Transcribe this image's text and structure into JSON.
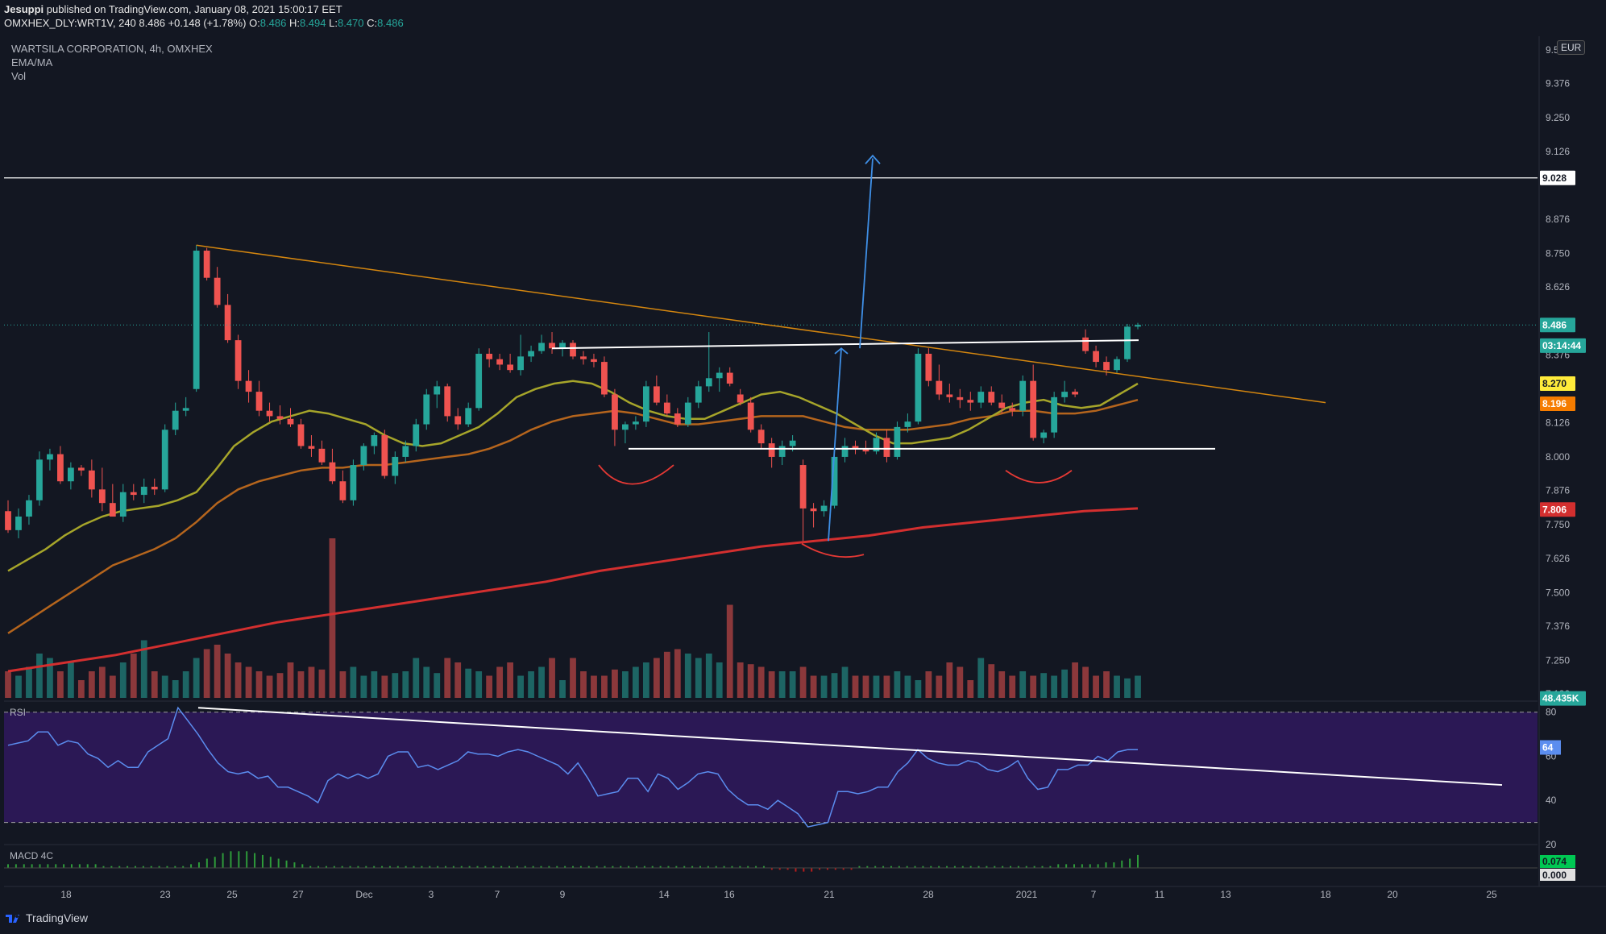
{
  "header": {
    "publisher": "Jesuppi",
    "published_text": "published on TradingView.com, January 08, 2021 15:00:17 EET",
    "symbol_line": "OMXHEX_DLY:WRT1V, 240",
    "last": "8.486",
    "change": "+0.148 (+1.78%)",
    "o_label": "O:",
    "o": "8.486",
    "h_label": "H:",
    "h": "8.494",
    "l_label": "L:",
    "l": "8.470",
    "c_label": "C:",
    "c": "8.486"
  },
  "legend": {
    "title": "WARTSILA CORPORATION, 4h, OMXHEX",
    "ind1": "EMA/MA",
    "ind2": "Vol",
    "rsi": "RSI",
    "macd": "MACD 4C"
  },
  "currency": "EUR",
  "footer": {
    "brand": "TradingView",
    "logo": "tradingview-logo-icon"
  },
  "colors": {
    "background": "#131722",
    "up": "#26a69a",
    "down": "#ef5350",
    "ema_short": "#a6a52a",
    "ema_long": "#b5651d",
    "ma_200": "#d32f2f",
    "trendline": "#d4860f",
    "rsi_line": "#5b8def",
    "rsi_band": "#2b1855",
    "arrow": "#3f8fe6",
    "cup": "#e53935"
  },
  "chart_data": {
    "type": "candlestick",
    "title": "WARTSILA CORPORATION, 4h, OMXHEX",
    "price_ticks": [
      "9.500",
      "9.376",
      "9.250",
      "9.126",
      "8.876",
      "8.750",
      "8.626",
      "8.376",
      "8.126",
      "8.000",
      "7.876",
      "7.750",
      "7.626",
      "7.500",
      "7.376",
      "7.250",
      "7.126"
    ],
    "price_labels": [
      {
        "text": "9.028",
        "kind": "hline"
      },
      {
        "text": "8.486",
        "kind": "last"
      },
      {
        "text": "03:14:44",
        "kind": "countdown"
      },
      {
        "text": "8.270",
        "kind": "ema_short"
      },
      {
        "text": "8.196",
        "kind": "ema_long"
      },
      {
        "text": "7.806",
        "kind": "ma_200"
      },
      {
        "text": "48.435K",
        "kind": "volume"
      }
    ],
    "ylim": [
      7.1,
      9.55
    ],
    "x_ticks": [
      "18",
      "23",
      "25",
      "27",
      "Dec",
      "3",
      "7",
      "9",
      "14",
      "16",
      "21",
      "28",
      "2021",
      "7",
      "11",
      "13",
      "18",
      "20",
      "25"
    ],
    "candles": [
      {
        "o": 7.8,
        "h": 7.84,
        "l": 7.72,
        "c": 7.73
      },
      {
        "o": 7.73,
        "h": 7.81,
        "l": 7.7,
        "c": 7.78
      },
      {
        "o": 7.78,
        "h": 7.86,
        "l": 7.75,
        "c": 7.84
      },
      {
        "o": 7.84,
        "h": 8.02,
        "l": 7.82,
        "c": 7.99
      },
      {
        "o": 7.99,
        "h": 8.03,
        "l": 7.95,
        "c": 8.01
      },
      {
        "o": 8.01,
        "h": 8.04,
        "l": 7.9,
        "c": 7.91
      },
      {
        "o": 7.91,
        "h": 7.98,
        "l": 7.88,
        "c": 7.96
      },
      {
        "o": 7.96,
        "h": 7.97,
        "l": 7.93,
        "c": 7.95
      },
      {
        "o": 7.95,
        "h": 7.99,
        "l": 7.85,
        "c": 7.88
      },
      {
        "o": 7.88,
        "h": 7.96,
        "l": 7.8,
        "c": 7.83
      },
      {
        "o": 7.83,
        "h": 7.9,
        "l": 7.78,
        "c": 7.78
      },
      {
        "o": 7.78,
        "h": 7.9,
        "l": 7.76,
        "c": 7.87
      },
      {
        "o": 7.87,
        "h": 7.9,
        "l": 7.84,
        "c": 7.86
      },
      {
        "o": 7.86,
        "h": 7.92,
        "l": 7.83,
        "c": 7.89
      },
      {
        "o": 7.89,
        "h": 7.92,
        "l": 7.86,
        "c": 7.88
      },
      {
        "o": 7.88,
        "h": 8.12,
        "l": 7.87,
        "c": 8.1
      },
      {
        "o": 8.1,
        "h": 8.2,
        "l": 8.08,
        "c": 8.17
      },
      {
        "o": 8.17,
        "h": 8.22,
        "l": 8.15,
        "c": 8.18
      },
      {
        "o": 8.25,
        "h": 8.78,
        "l": 8.24,
        "c": 8.76
      },
      {
        "o": 8.76,
        "h": 8.77,
        "l": 8.65,
        "c": 8.66
      },
      {
        "o": 8.66,
        "h": 8.7,
        "l": 8.55,
        "c": 8.56
      },
      {
        "o": 8.56,
        "h": 8.6,
        "l": 8.42,
        "c": 8.43
      },
      {
        "o": 8.43,
        "h": 8.45,
        "l": 8.25,
        "c": 8.28
      },
      {
        "o": 8.28,
        "h": 8.32,
        "l": 8.2,
        "c": 8.24
      },
      {
        "o": 8.24,
        "h": 8.28,
        "l": 8.15,
        "c": 8.17
      },
      {
        "o": 8.17,
        "h": 8.2,
        "l": 8.13,
        "c": 8.15
      },
      {
        "o": 8.15,
        "h": 8.19,
        "l": 8.12,
        "c": 8.14
      },
      {
        "o": 8.14,
        "h": 8.18,
        "l": 8.11,
        "c": 8.12
      },
      {
        "o": 8.12,
        "h": 8.14,
        "l": 8.03,
        "c": 8.04
      },
      {
        "o": 8.04,
        "h": 8.08,
        "l": 8.0,
        "c": 8.03
      },
      {
        "o": 8.03,
        "h": 8.06,
        "l": 7.97,
        "c": 7.98
      },
      {
        "o": 7.98,
        "h": 8.03,
        "l": 7.9,
        "c": 7.91
      },
      {
        "o": 7.91,
        "h": 7.95,
        "l": 7.83,
        "c": 7.84
      },
      {
        "o": 7.84,
        "h": 7.99,
        "l": 7.82,
        "c": 7.97
      },
      {
        "o": 7.97,
        "h": 8.05,
        "l": 7.95,
        "c": 8.04
      },
      {
        "o": 8.04,
        "h": 8.09,
        "l": 8.01,
        "c": 8.08
      },
      {
        "o": 8.08,
        "h": 8.1,
        "l": 7.92,
        "c": 7.93
      },
      {
        "o": 7.93,
        "h": 8.02,
        "l": 7.9,
        "c": 8.0
      },
      {
        "o": 8.0,
        "h": 8.06,
        "l": 7.98,
        "c": 8.04
      },
      {
        "o": 8.04,
        "h": 8.14,
        "l": 8.02,
        "c": 8.12
      },
      {
        "o": 8.12,
        "h": 8.25,
        "l": 8.1,
        "c": 8.23
      },
      {
        "o": 8.23,
        "h": 8.28,
        "l": 8.18,
        "c": 8.26
      },
      {
        "o": 8.26,
        "h": 8.27,
        "l": 8.13,
        "c": 8.15
      },
      {
        "o": 8.15,
        "h": 8.18,
        "l": 8.1,
        "c": 8.12
      },
      {
        "o": 8.12,
        "h": 8.2,
        "l": 8.11,
        "c": 8.18
      },
      {
        "o": 8.18,
        "h": 8.4,
        "l": 8.17,
        "c": 8.38
      },
      {
        "o": 8.38,
        "h": 8.4,
        "l": 8.33,
        "c": 8.36
      },
      {
        "o": 8.36,
        "h": 8.38,
        "l": 8.32,
        "c": 8.34
      },
      {
        "o": 8.34,
        "h": 8.38,
        "l": 8.31,
        "c": 8.32
      },
      {
        "o": 8.32,
        "h": 8.45,
        "l": 8.3,
        "c": 8.37
      },
      {
        "o": 8.37,
        "h": 8.41,
        "l": 8.35,
        "c": 8.39
      },
      {
        "o": 8.39,
        "h": 8.45,
        "l": 8.38,
        "c": 8.42
      },
      {
        "o": 8.42,
        "h": 8.46,
        "l": 8.38,
        "c": 8.4
      },
      {
        "o": 8.4,
        "h": 8.43,
        "l": 8.37,
        "c": 8.42
      },
      {
        "o": 8.42,
        "h": 8.43,
        "l": 8.36,
        "c": 8.37
      },
      {
        "o": 8.37,
        "h": 8.39,
        "l": 8.34,
        "c": 8.36
      },
      {
        "o": 8.36,
        "h": 8.38,
        "l": 8.33,
        "c": 8.35
      },
      {
        "o": 8.35,
        "h": 8.37,
        "l": 8.22,
        "c": 8.23
      },
      {
        "o": 8.23,
        "h": 8.25,
        "l": 8.04,
        "c": 8.1
      },
      {
        "o": 8.1,
        "h": 8.13,
        "l": 8.05,
        "c": 8.12
      },
      {
        "o": 8.12,
        "h": 8.15,
        "l": 8.1,
        "c": 8.13
      },
      {
        "o": 8.13,
        "h": 8.28,
        "l": 8.11,
        "c": 8.26
      },
      {
        "o": 8.26,
        "h": 8.3,
        "l": 8.19,
        "c": 8.2
      },
      {
        "o": 8.2,
        "h": 8.23,
        "l": 8.15,
        "c": 8.16
      },
      {
        "o": 8.16,
        "h": 8.18,
        "l": 8.11,
        "c": 8.12
      },
      {
        "o": 8.12,
        "h": 8.22,
        "l": 8.11,
        "c": 8.2
      },
      {
        "o": 8.2,
        "h": 8.28,
        "l": 8.18,
        "c": 8.26
      },
      {
        "o": 8.26,
        "h": 8.46,
        "l": 8.24,
        "c": 8.29
      },
      {
        "o": 8.29,
        "h": 8.33,
        "l": 8.24,
        "c": 8.31
      },
      {
        "o": 8.31,
        "h": 8.33,
        "l": 8.26,
        "c": 8.27
      },
      {
        "o": 8.23,
        "h": 8.25,
        "l": 8.19,
        "c": 8.2
      },
      {
        "o": 8.2,
        "h": 8.22,
        "l": 8.09,
        "c": 8.1
      },
      {
        "o": 8.1,
        "h": 8.12,
        "l": 8.03,
        "c": 8.05
      },
      {
        "o": 8.05,
        "h": 8.07,
        "l": 7.96,
        "c": 8.0
      },
      {
        "o": 8.0,
        "h": 8.06,
        "l": 7.97,
        "c": 8.04
      },
      {
        "o": 8.04,
        "h": 8.08,
        "l": 8.02,
        "c": 8.06
      },
      {
        "o": 7.97,
        "h": 7.99,
        "l": 7.69,
        "c": 7.81
      },
      {
        "o": 7.81,
        "h": 7.83,
        "l": 7.74,
        "c": 7.8
      },
      {
        "o": 7.8,
        "h": 7.84,
        "l": 7.78,
        "c": 7.82
      },
      {
        "o": 7.82,
        "h": 8.03,
        "l": 7.81,
        "c": 8.0
      },
      {
        "o": 8.0,
        "h": 8.07,
        "l": 7.98,
        "c": 8.04
      },
      {
        "o": 8.04,
        "h": 8.06,
        "l": 8.01,
        "c": 8.03
      },
      {
        "o": 8.03,
        "h": 8.06,
        "l": 8.01,
        "c": 8.02
      },
      {
        "o": 8.02,
        "h": 8.09,
        "l": 8.01,
        "c": 8.07
      },
      {
        "o": 8.07,
        "h": 8.1,
        "l": 7.98,
        "c": 8.0
      },
      {
        "o": 8.0,
        "h": 8.13,
        "l": 7.99,
        "c": 8.11
      },
      {
        "o": 8.11,
        "h": 8.16,
        "l": 8.09,
        "c": 8.13
      },
      {
        "o": 8.13,
        "h": 8.4,
        "l": 8.12,
        "c": 8.38
      },
      {
        "o": 8.38,
        "h": 8.4,
        "l": 8.26,
        "c": 8.28
      },
      {
        "o": 8.28,
        "h": 8.34,
        "l": 8.21,
        "c": 8.23
      },
      {
        "o": 8.23,
        "h": 8.27,
        "l": 8.2,
        "c": 8.22
      },
      {
        "o": 8.22,
        "h": 8.25,
        "l": 8.18,
        "c": 8.21
      },
      {
        "o": 8.21,
        "h": 8.24,
        "l": 8.17,
        "c": 8.2
      },
      {
        "o": 8.2,
        "h": 8.26,
        "l": 8.18,
        "c": 8.24
      },
      {
        "o": 8.24,
        "h": 8.26,
        "l": 8.19,
        "c": 8.2
      },
      {
        "o": 8.2,
        "h": 8.23,
        "l": 8.16,
        "c": 8.18
      },
      {
        "o": 8.18,
        "h": 8.2,
        "l": 8.15,
        "c": 8.17
      },
      {
        "o": 8.17,
        "h": 8.3,
        "l": 8.15,
        "c": 8.28
      },
      {
        "o": 8.28,
        "h": 8.34,
        "l": 8.06,
        "c": 8.07
      },
      {
        "o": 8.07,
        "h": 8.1,
        "l": 8.05,
        "c": 8.09
      },
      {
        "o": 8.09,
        "h": 8.24,
        "l": 8.07,
        "c": 8.22
      },
      {
        "o": 8.22,
        "h": 8.28,
        "l": 8.2,
        "c": 8.24
      },
      {
        "o": 8.24,
        "h": 8.25,
        "l": 8.22,
        "c": 8.23
      },
      {
        "o": 8.44,
        "h": 8.47,
        "l": 8.38,
        "c": 8.39
      },
      {
        "o": 8.39,
        "h": 8.41,
        "l": 8.33,
        "c": 8.35
      },
      {
        "o": 8.35,
        "h": 8.37,
        "l": 8.3,
        "c": 8.32
      },
      {
        "o": 8.32,
        "h": 8.37,
        "l": 8.31,
        "c": 8.36
      },
      {
        "o": 8.36,
        "h": 8.49,
        "l": 8.35,
        "c": 8.48
      },
      {
        "o": 8.48,
        "h": 8.494,
        "l": 8.47,
        "c": 8.486
      }
    ],
    "ema_short": [
      7.58,
      7.62,
      7.66,
      7.71,
      7.75,
      7.78,
      7.8,
      7.81,
      7.82,
      7.84,
      7.87,
      7.95,
      8.04,
      8.09,
      8.13,
      8.15,
      8.17,
      8.16,
      8.14,
      8.12,
      8.08,
      8.05,
      8.04,
      8.05,
      8.08,
      8.11,
      8.16,
      8.22,
      8.25,
      8.27,
      8.28,
      8.27,
      8.24,
      8.2,
      8.17,
      8.15,
      8.14,
      8.14,
      8.17,
      8.2,
      8.23,
      8.24,
      8.22,
      8.19,
      8.16,
      8.12,
      8.08,
      8.05,
      8.05,
      8.06,
      8.07,
      8.1,
      8.14,
      8.18,
      8.2,
      8.21,
      8.19,
      8.18,
      8.19,
      8.23,
      8.27
    ],
    "ema_long": [
      7.35,
      7.4,
      7.45,
      7.5,
      7.55,
      7.6,
      7.63,
      7.66,
      7.7,
      7.76,
      7.83,
      7.88,
      7.91,
      7.93,
      7.95,
      7.96,
      7.96,
      7.97,
      7.97,
      7.98,
      7.99,
      8.0,
      8.01,
      8.03,
      8.06,
      8.1,
      8.13,
      8.15,
      8.16,
      8.17,
      8.16,
      8.14,
      8.12,
      8.12,
      8.13,
      8.14,
      8.15,
      8.15,
      8.15,
      8.13,
      8.11,
      8.1,
      8.1,
      8.1,
      8.11,
      8.12,
      8.14,
      8.15,
      8.17,
      8.17,
      8.16,
      8.16,
      8.17,
      8.19,
      8.21
    ],
    "ma_200": [
      7.21,
      7.24,
      7.27,
      7.31,
      7.35,
      7.39,
      7.42,
      7.45,
      7.48,
      7.51,
      7.54,
      7.58,
      7.61,
      7.64,
      7.67,
      7.69,
      7.71,
      7.74,
      7.76,
      7.78,
      7.8,
      7.81
    ],
    "volume": [
      0.3,
      0.25,
      0.35,
      0.5,
      0.45,
      0.3,
      0.4,
      0.2,
      0.3,
      0.35,
      0.25,
      0.4,
      0.5,
      0.65,
      0.3,
      0.25,
      0.2,
      0.3,
      0.45,
      0.55,
      0.6,
      0.5,
      0.4,
      0.35,
      0.3,
      0.25,
      0.28,
      0.4,
      0.3,
      0.35,
      0.32,
      1.8,
      0.3,
      0.35,
      0.25,
      0.3,
      0.25,
      0.28,
      0.3,
      0.45,
      0.35,
      0.28,
      0.45,
      0.4,
      0.33,
      0.3,
      0.25,
      0.35,
      0.4,
      0.25,
      0.3,
      0.35,
      0.45,
      0.2,
      0.45,
      0.3,
      0.25,
      0.25,
      0.32,
      0.3,
      0.35,
      0.4,
      0.45,
      0.52,
      0.55,
      0.5,
      0.45,
      0.5,
      0.4,
      1.05,
      0.4,
      0.38,
      0.35,
      0.3,
      0.3,
      0.3,
      0.35,
      0.25,
      0.25,
      0.28,
      0.35,
      0.25,
      0.25,
      0.25,
      0.25,
      0.3,
      0.25,
      0.2,
      0.3,
      0.25,
      0.4,
      0.35,
      0.2,
      0.45,
      0.38,
      0.3,
      0.25,
      0.3,
      0.25,
      0.28,
      0.25,
      0.32,
      0.4,
      0.35,
      0.25,
      0.3,
      0.25,
      0.22,
      0.25,
      0.45,
      0.48,
      0.6,
      0.15
    ],
    "rsi": {
      "ticks": [
        "80",
        "60",
        "40",
        "20"
      ],
      "ylim": [
        20,
        85
      ],
      "band": [
        30,
        80
      ],
      "last_label": "64",
      "values": [
        65,
        66,
        67,
        71,
        71,
        65,
        67,
        66,
        61,
        59,
        55,
        58,
        55,
        55,
        62,
        65,
        68,
        82,
        76,
        70,
        63,
        57,
        53,
        52,
        53,
        50,
        51,
        46,
        46,
        44,
        42,
        39,
        49,
        52,
        50,
        52,
        50,
        52,
        60,
        62,
        62,
        55,
        56,
        54,
        56,
        58,
        62,
        61,
        61,
        60,
        62,
        63,
        62,
        60,
        58,
        56,
        52,
        57,
        50,
        42,
        43,
        44,
        50,
        50,
        44,
        52,
        50,
        45,
        48,
        52,
        53,
        52,
        45,
        41,
        38,
        38,
        36,
        40,
        37,
        34,
        28,
        29,
        30,
        44,
        44,
        43,
        44,
        46,
        46,
        53,
        57,
        63,
        59,
        57,
        56,
        56,
        58,
        57,
        54,
        53,
        55,
        58,
        50,
        45,
        46,
        54,
        54,
        56,
        56,
        60,
        58,
        62,
        63,
        63
      ]
    },
    "macd": {
      "hist_labels": [
        "0.074",
        "0.000"
      ],
      "values": [
        0.02,
        0.02,
        0.02,
        0.02,
        0.02,
        0.02,
        0.02,
        0.02,
        0.02,
        0.02,
        0.02,
        0.02,
        0.01,
        0.01,
        0.01,
        0.01,
        0.01,
        0.01,
        0.01,
        0.01,
        0.01,
        0.01,
        0.01,
        0.02,
        0.03,
        0.05,
        0.06,
        0.08,
        0.09,
        0.09,
        0.09,
        0.08,
        0.07,
        0.06,
        0.05,
        0.04,
        0.03,
        0.02,
        0.01,
        0.01,
        0.01,
        0.01,
        0.01,
        0.01,
        0.01,
        0.01,
        0.01,
        0.01,
        0.01,
        0.01,
        0.01,
        0.01,
        0.01,
        0.01,
        0.01,
        0.01,
        0.01,
        0.01,
        0.01,
        0.01,
        0.01,
        0.01,
        0.01,
        0.01,
        0.01,
        0.01,
        0.01,
        0.01,
        0.01,
        0.01,
        0.01,
        0.01,
        0.01,
        0.01,
        0.01,
        0.01,
        0.01,
        0.01,
        0.01,
        0.01,
        0.01,
        0.01,
        0.01,
        0.01,
        0.01,
        0.01,
        0.01,
        0.01,
        0.01,
        0.01,
        0.01,
        0.01,
        0.01,
        0.01,
        0.01,
        0.01,
        -0.01,
        -0.01,
        -0.01,
        -0.02,
        -0.02,
        -0.02,
        -0.01,
        -0.01,
        -0.01,
        -0.01,
        -0.01,
        0.01,
        0.01,
        0.01,
        0.01,
        0.01,
        0.01,
        0.01,
        0.01,
        0.01,
        0.01,
        0.01,
        0.01,
        0.01,
        0.01,
        0.01,
        0.01,
        0.01,
        0.01,
        0.01,
        0.01,
        0.01,
        0.01,
        0.01,
        0.01,
        0.01,
        0.02,
        0.02,
        0.02,
        0.02,
        0.02,
        0.02,
        0.03,
        0.03,
        0.04,
        0.05,
        0.07
      ]
    }
  }
}
